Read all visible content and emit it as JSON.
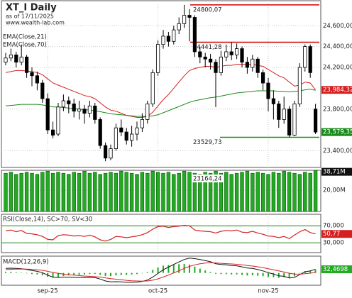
{
  "chart_data": [
    {
      "type": "candlestick",
      "title": "XT_I Daily",
      "subtitle": "as of 17/11/2025",
      "source": "www.wealth-lab.com",
      "categories": [
        null,
        null,
        null,
        null,
        null,
        null,
        null,
        null,
        "sep-25",
        null,
        null,
        null,
        null,
        null,
        null,
        null,
        null,
        null,
        null,
        null,
        null,
        null,
        null,
        null,
        null,
        null,
        null,
        null,
        null,
        "oct-25",
        null,
        null,
        null,
        null,
        null,
        null,
        null,
        null,
        null,
        null,
        null,
        null,
        null,
        null,
        null,
        null,
        null,
        null,
        null,
        null,
        "nov-25",
        null,
        null,
        null,
        null,
        null,
        null,
        null,
        null,
        null
      ],
      "open": [
        24250,
        24290,
        24320,
        24250,
        24300,
        24150,
        24120,
        24050,
        23900,
        23600,
        23560,
        23820,
        23880,
        23850,
        23780,
        23800,
        23760,
        23830,
        23700,
        23450,
        23330,
        23420,
        23620,
        23580,
        23500,
        23560,
        23620,
        23700,
        23850,
        24150,
        24420,
        24500,
        24450,
        24560,
        24620,
        24700,
        24680,
        24350,
        24300,
        24280,
        24250,
        24150,
        24300,
        24350,
        24320,
        24380,
        24250,
        24200,
        24280,
        24150,
        24050,
        23900,
        23850,
        23700,
        23800,
        23550,
        23850,
        24200,
        24400,
        23800
      ],
      "high": [
        24340,
        24380,
        24350,
        24420,
        24320,
        24200,
        24160,
        24080,
        23950,
        23680,
        23860,
        23940,
        23920,
        23900,
        23880,
        23840,
        23880,
        23860,
        23720,
        23480,
        23460,
        23660,
        23700,
        23620,
        23640,
        23680,
        23760,
        23880,
        24180,
        24460,
        24560,
        24540,
        24600,
        24680,
        24800.07,
        24760,
        24700,
        24400,
        24340,
        24330,
        24280,
        24360,
        24420,
        24441.28,
        24430,
        24400,
        24300,
        24320,
        24300,
        24180,
        24100,
        23980,
        23880,
        23920,
        23830,
        23880,
        24240,
        24420,
        24420,
        23850
      ],
      "low": [
        24220,
        24260,
        24200,
        24220,
        24100,
        24020,
        23980,
        23860,
        23560,
        23520,
        23540,
        23780,
        23760,
        23720,
        23700,
        23660,
        23720,
        23660,
        23420,
        23300,
        23310,
        23400,
        23540,
        23460,
        23440,
        23500,
        23580,
        23660,
        23820,
        24120,
        24380,
        24400,
        24420,
        24520,
        24580,
        24450,
        24300,
        24240,
        24200,
        24180,
        23820,
        24120,
        24260,
        24270,
        24280,
        24200,
        24140,
        24160,
        24100,
        23980,
        23780,
        23700,
        23620,
        23660,
        23529.73,
        23540,
        23820,
        24160,
        24100,
        23560
      ],
      "close": [
        24290,
        24320,
        24250,
        24300,
        24150,
        24120,
        24050,
        23900,
        23600,
        23550,
        23820,
        23880,
        23850,
        23780,
        23800,
        23760,
        23830,
        23700,
        23450,
        23330,
        23420,
        23620,
        23580,
        23500,
        23560,
        23620,
        23700,
        23850,
        24150,
        24420,
        24500,
        24450,
        24560,
        24620,
        24700,
        24680,
        24350,
        24300,
        24280,
        24250,
        24150,
        24300,
        24350,
        24320,
        24380,
        24250,
        24200,
        24280,
        24150,
        24050,
        23900,
        23850,
        23700,
        23800,
        23550,
        23850,
        24200,
        24400,
        24150,
        23579.35
      ],
      "close_label": "23,579,35",
      "close_color": "#1a8a1a",
      "series": [
        {
          "name": "EMA(Close,21)",
          "color": "#d62020",
          "end_label": "23,984,32",
          "values": [
            24150,
            24160,
            24170,
            24170,
            24165,
            24160,
            24150,
            24130,
            24090,
            24050,
            24030,
            24010,
            23990,
            23970,
            23950,
            23930,
            23920,
            23900,
            23860,
            23820,
            23790,
            23780,
            23760,
            23740,
            23730,
            23720,
            23720,
            23730,
            23770,
            23830,
            23890,
            23940,
            24000,
            24060,
            24120,
            24170,
            24190,
            24200,
            24210,
            24210,
            24200,
            24210,
            24220,
            24220,
            24230,
            24230,
            24230,
            24230,
            24220,
            24210,
            24180,
            24150,
            24120,
            24100,
            24060,
            24020,
            24030,
            24060,
            24050,
            23984.32
          ]
        },
        {
          "name": "EMA(Close,70)",
          "color": "#1a8a1a",
          "values": [
            23830,
            23835,
            23840,
            23845,
            23845,
            23845,
            23845,
            23840,
            23830,
            23820,
            23820,
            23815,
            23810,
            23805,
            23800,
            23795,
            23790,
            23785,
            23775,
            23765,
            23755,
            23750,
            23745,
            23740,
            23735,
            23730,
            23730,
            23730,
            23735,
            23745,
            23765,
            23785,
            23805,
            23825,
            23845,
            23865,
            23880,
            23890,
            23900,
            23910,
            23915,
            23925,
            23935,
            23945,
            23955,
            23960,
            23965,
            23970,
            23975,
            23975,
            23975,
            23975,
            23970,
            23970,
            23965,
            23970,
            23975,
            23985,
            23990,
            23980
          ]
        }
      ],
      "ylim": [
        23240,
        24840
      ],
      "yticks": [
        {
          "value": 23400,
          "label": "23,400,00"
        },
        {
          "value": 23800,
          "label": "23,800,00"
        },
        {
          "value": 24200,
          "label": "24,200,00"
        },
        {
          "value": 24400,
          "label": "24,400,00"
        },
        {
          "value": 24600,
          "label": "24,600,00"
        }
      ],
      "annotations": [
        {
          "value": 24800.07,
          "label": "24800,07",
          "color": "#d00000"
        },
        {
          "value": 24441.28,
          "label": "24441,28",
          "color": "#d00000"
        },
        {
          "value": 23529.73,
          "label": "23529,73",
          "color": "#1a8a1a"
        }
      ]
    },
    {
      "type": "bar",
      "color": "#22aa22",
      "note": "23164,24",
      "values": [
        36,
        37,
        35,
        36,
        37,
        36,
        35,
        37,
        38,
        36,
        37,
        36,
        35,
        37,
        36,
        38,
        36,
        37,
        35,
        36,
        37,
        36,
        38,
        37,
        36,
        35,
        37,
        36,
        38,
        37,
        36,
        37,
        35,
        36,
        38,
        37,
        36,
        35,
        37,
        36,
        38,
        36,
        37,
        35,
        36,
        37,
        38,
        36,
        37,
        36,
        35,
        37,
        36,
        38,
        37,
        36,
        35,
        37,
        36,
        38.71
      ],
      "end_label": "38,71M",
      "ylim": [
        0,
        38.8
      ],
      "yticks": [
        {
          "value": 20,
          "label": "20,00M"
        }
      ]
    },
    {
      "type": "line",
      "title": "RSI(Close,14), SC>70, SV<30",
      "color": "#d62020",
      "values": [
        58,
        60,
        56,
        59,
        52,
        51,
        49,
        45,
        38,
        37,
        47,
        49,
        48,
        46,
        47,
        45,
        48,
        44,
        37,
        34,
        38,
        45,
        44,
        42,
        44,
        46,
        49,
        54,
        62,
        68,
        69,
        66,
        68,
        69,
        71,
        70,
        60,
        58,
        57,
        56,
        53,
        57,
        59,
        58,
        60,
        55,
        54,
        57,
        53,
        50,
        46,
        45,
        42,
        45,
        40,
        48,
        56,
        61,
        54,
        50.77
      ],
      "end_label": "50,77",
      "ylim": [
        7,
        97
      ],
      "yticks": [
        {
          "value": 70,
          "label": "70,000"
        },
        {
          "value": 30,
          "label": "30,000"
        }
      ],
      "band_color": "#1a8a1a"
    },
    {
      "type": "macd",
      "title": "MACD(12,26,9)",
      "end_label": "32,4698",
      "hist_color": "#22aa22",
      "series": [
        {
          "color": "#111111",
          "values": [
            40,
            42,
            40,
            38,
            30,
            22,
            14,
            2,
            -20,
            -38,
            -40,
            -38,
            -38,
            -40,
            -40,
            -42,
            -40,
            -42,
            -55,
            -72,
            -80,
            -78,
            -80,
            -84,
            -84,
            -82,
            -76,
            -64,
            -38,
            -4,
            28,
            52,
            76,
            98,
            120,
            132,
            128,
            120,
            110,
            100,
            82,
            76,
            72,
            66,
            64,
            54,
            44,
            40,
            30,
            18,
            2,
            -10,
            -26,
            -30,
            -46,
            -40,
            -14,
            10,
            18,
            32.4698
          ]
        },
        {
          "color": "#d62020",
          "values": [
            30,
            32,
            34,
            35,
            34,
            32,
            28,
            23,
            14,
            4,
            -4,
            -10,
            -16,
            -20,
            -24,
            -28,
            -30,
            -33,
            -37,
            -44,
            -51,
            -56,
            -61,
            -66,
            -70,
            -72,
            -73,
            -72,
            -65,
            -53,
            -37,
            -19,
            0,
            20,
            40,
            58,
            72,
            82,
            88,
            91,
            89,
            86,
            83,
            80,
            77,
            72,
            67,
            61,
            55,
            47,
            38,
            28,
            18,
            8,
            -3,
            -10,
            -11,
            -7,
            -2,
            5
          ]
        }
      ],
      "histogram": [
        10,
        10,
        6,
        3,
        -4,
        -10,
        -14,
        -21,
        -34,
        -42,
        -36,
        -28,
        -22,
        -20,
        -16,
        -14,
        -10,
        -9,
        -18,
        -28,
        -29,
        -22,
        -19,
        -18,
        -14,
        -10,
        -3,
        8,
        27,
        49,
        65,
        71,
        76,
        78,
        80,
        74,
        56,
        38,
        22,
        9,
        -7,
        -10,
        -11,
        -14,
        -13,
        -18,
        -23,
        -21,
        -25,
        -29,
        -36,
        -38,
        -44,
        -38,
        -43,
        -30,
        -3,
        17,
        20,
        27.4698
      ],
      "ylim": [
        -110,
        150
      ]
    }
  ]
}
